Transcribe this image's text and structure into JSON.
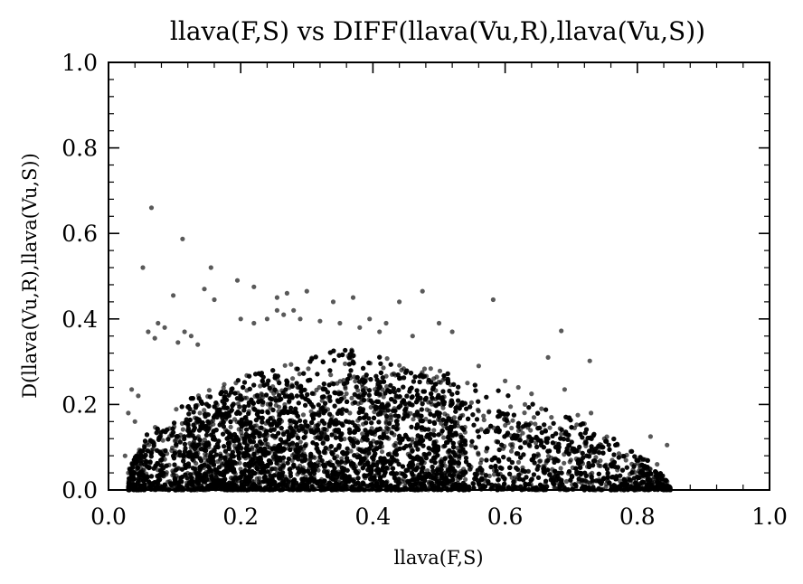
{
  "chart_data": {
    "type": "scatter",
    "title": "llava(F,S) vs DIFF(llava(Vu,R),llava(Vu,S))",
    "xlabel": "llava(F,S)",
    "ylabel": "D(llava(Vu,R),llava(Vu,S))",
    "xlim": [
      0.0,
      1.0
    ],
    "ylim": [
      0.0,
      1.0
    ],
    "xticks": [
      "0.0",
      "0.2",
      "0.4",
      "0.6",
      "0.8",
      "1.0"
    ],
    "yticks": [
      "0.0",
      "0.2",
      "0.4",
      "0.6",
      "0.8",
      "1.0"
    ],
    "grid": false,
    "legend": "none",
    "marker_color": "#000000",
    "marker_opacity": 0.65,
    "series": [
      {
        "points": [
          [
            0.065,
            0.66
          ],
          [
            0.112,
            0.587
          ],
          [
            0.052,
            0.52
          ],
          [
            0.155,
            0.52
          ],
          [
            0.195,
            0.49
          ],
          [
            0.098,
            0.455
          ],
          [
            0.145,
            0.47
          ],
          [
            0.16,
            0.445
          ],
          [
            0.22,
            0.475
          ],
          [
            0.255,
            0.45
          ],
          [
            0.27,
            0.46
          ],
          [
            0.3,
            0.465
          ],
          [
            0.34,
            0.44
          ],
          [
            0.37,
            0.45
          ],
          [
            0.44,
            0.44
          ],
          [
            0.475,
            0.465
          ],
          [
            0.582,
            0.445
          ],
          [
            0.685,
            0.372
          ],
          [
            0.728,
            0.302
          ],
          [
            0.665,
            0.31
          ],
          [
            0.5,
            0.39
          ],
          [
            0.46,
            0.36
          ],
          [
            0.52,
            0.37
          ],
          [
            0.075,
            0.39
          ],
          [
            0.085,
            0.38
          ],
          [
            0.06,
            0.37
          ],
          [
            0.07,
            0.355
          ],
          [
            0.115,
            0.37
          ],
          [
            0.125,
            0.36
          ],
          [
            0.105,
            0.345
          ],
          [
            0.135,
            0.34
          ],
          [
            0.2,
            0.4
          ],
          [
            0.22,
            0.39
          ],
          [
            0.24,
            0.4
          ],
          [
            0.255,
            0.42
          ],
          [
            0.265,
            0.41
          ],
          [
            0.28,
            0.42
          ],
          [
            0.29,
            0.4
          ],
          [
            0.32,
            0.395
          ],
          [
            0.35,
            0.39
          ],
          [
            0.38,
            0.38
          ],
          [
            0.395,
            0.4
          ],
          [
            0.42,
            0.39
          ],
          [
            0.41,
            0.37
          ],
          [
            0.56,
            0.29
          ],
          [
            0.6,
            0.255
          ],
          [
            0.62,
            0.24
          ],
          [
            0.64,
            0.225
          ],
          [
            0.63,
            0.2
          ],
          [
            0.69,
            0.235
          ],
          [
            0.71,
            0.175
          ],
          [
            0.73,
            0.18
          ],
          [
            0.72,
            0.155
          ],
          [
            0.75,
            0.12
          ],
          [
            0.77,
            0.105
          ],
          [
            0.79,
            0.09
          ],
          [
            0.82,
            0.125
          ],
          [
            0.845,
            0.105
          ],
          [
            0.8,
            0.07
          ],
          [
            0.83,
            0.06
          ],
          [
            0.815,
            0.05
          ],
          [
            0.84,
            0.02
          ],
          [
            0.85,
            0.005
          ],
          [
            0.835,
            0.035
          ],
          [
            0.705,
            0.145
          ],
          [
            0.67,
            0.17
          ],
          [
            0.655,
            0.19
          ],
          [
            0.035,
            0.235
          ],
          [
            0.045,
            0.22
          ],
          [
            0.03,
            0.18
          ],
          [
            0.04,
            0.16
          ],
          [
            0.025,
            0.08
          ],
          [
            0.03,
            0.04
          ],
          [
            0.035,
            0.01
          ],
          [
            0.04,
            0.005
          ]
        ],
        "cloud": {
          "count": 9000,
          "x_min": 0.03,
          "x_max": 0.85,
          "peak_x": 0.37,
          "peak_y": 0.27
        }
      }
    ]
  }
}
